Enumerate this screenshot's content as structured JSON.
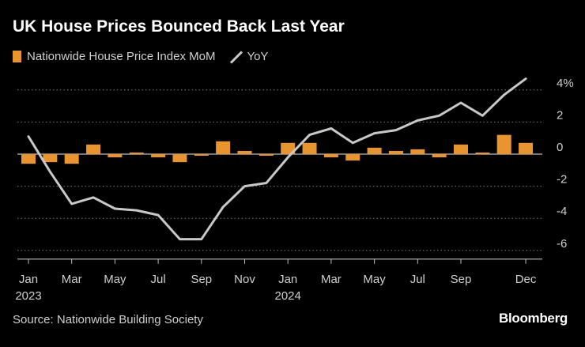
{
  "title": "UK House Prices Bounced Back Last Year",
  "legend": {
    "bar_label": "Nationwide House Price Index MoM",
    "line_label": "YoY"
  },
  "source": "Source: Nationwide Building Society",
  "brand": "Bloomberg",
  "colors": {
    "bar": "#e8952f",
    "line": "#c8c8c8",
    "grid": "#7a7a7a",
    "axis": "#bdbdbd",
    "background": "#000000"
  },
  "chart_data": {
    "type": "bar+line",
    "title": "UK House Prices Bounced Back Last Year",
    "x": [
      "2023-01",
      "2023-02",
      "2023-03",
      "2023-04",
      "2023-05",
      "2023-06",
      "2023-07",
      "2023-08",
      "2023-09",
      "2023-10",
      "2023-11",
      "2023-12",
      "2024-01",
      "2024-02",
      "2024-03",
      "2024-04",
      "2024-05",
      "2024-06",
      "2024-07",
      "2024-08",
      "2024-09",
      "2024-10",
      "2024-11",
      "2024-12"
    ],
    "series": [
      {
        "name": "Nationwide House Price Index MoM",
        "type": "bar",
        "values": [
          -0.6,
          -0.5,
          -0.6,
          0.6,
          -0.2,
          0.1,
          -0.2,
          -0.5,
          -0.1,
          0.8,
          0.2,
          -0.1,
          0.7,
          0.7,
          -0.2,
          -0.4,
          0.4,
          0.2,
          0.3,
          -0.2,
          0.6,
          0.1,
          1.2,
          0.7
        ]
      },
      {
        "name": "YoY",
        "type": "line",
        "values": [
          1.1,
          -1.1,
          -3.1,
          -2.7,
          -3.4,
          -3.5,
          -3.8,
          -5.3,
          -5.3,
          -3.3,
          -2.0,
          -1.8,
          -0.2,
          1.2,
          1.6,
          0.7,
          1.3,
          1.5,
          2.1,
          2.4,
          3.2,
          2.4,
          3.7,
          4.7
        ]
      }
    ],
    "x_tick_labels": [
      {
        "index": 0,
        "label": "Jan",
        "sublabel": "2023"
      },
      {
        "index": 2,
        "label": "Mar",
        "sublabel": ""
      },
      {
        "index": 4,
        "label": "May",
        "sublabel": ""
      },
      {
        "index": 6,
        "label": "Jul",
        "sublabel": ""
      },
      {
        "index": 8,
        "label": "Sep",
        "sublabel": ""
      },
      {
        "index": 10,
        "label": "Nov",
        "sublabel": ""
      },
      {
        "index": 12,
        "label": "Jan",
        "sublabel": "2024"
      },
      {
        "index": 14,
        "label": "Mar",
        "sublabel": ""
      },
      {
        "index": 16,
        "label": "May",
        "sublabel": ""
      },
      {
        "index": 18,
        "label": "Jul",
        "sublabel": ""
      },
      {
        "index": 20,
        "label": "Sep",
        "sublabel": ""
      },
      {
        "index": 23,
        "label": "Dec",
        "sublabel": ""
      }
    ],
    "y_ticks": [
      4,
      2,
      0,
      -2,
      -4,
      -6
    ],
    "y_tick_labels": [
      "4%",
      "2",
      "0",
      "-2",
      "-4",
      "-6"
    ],
    "ylim": [
      -6,
      4.6
    ],
    "xlabel": "",
    "ylabel": "",
    "legend_position": "top-left"
  }
}
